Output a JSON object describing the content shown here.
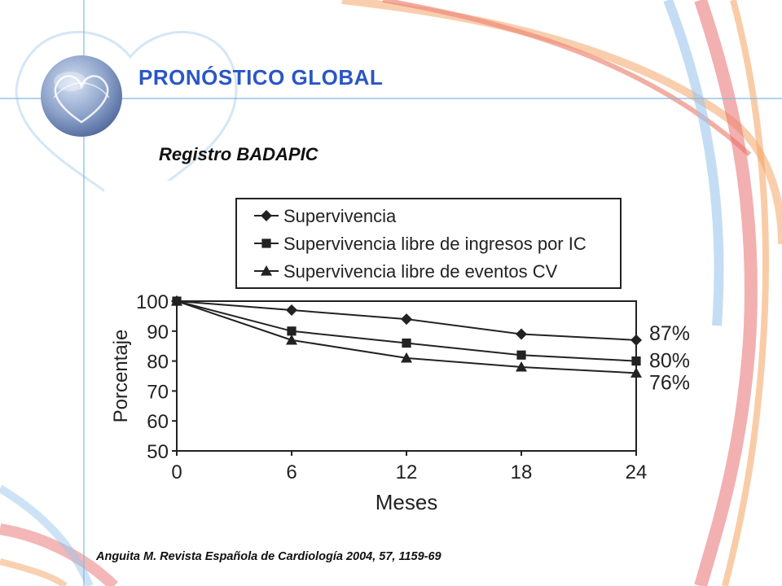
{
  "slide": {
    "title": "PRONÓSTICO GLOBAL",
    "subtitle": "Registro BADAPIC",
    "citation": "Anguita M. Revista Española de Cardiología 2004, 57, 1159-69",
    "colors": {
      "title": "#2a56c6",
      "guide_line": "#7fb8e6",
      "swirl_orange": "#f4a261",
      "swirl_red": "#e76f6f",
      "swirl_blue": "#9cc7ec",
      "logo_sphere": "#6f86b4"
    },
    "logo_icon": "heart-globe-icon"
  },
  "chart_data": {
    "type": "line",
    "title": "",
    "xlabel": "Meses",
    "ylabel": "Porcentaje",
    "x": [
      0,
      6,
      12,
      18,
      24
    ],
    "xlim": [
      0,
      24
    ],
    "ylim": [
      50,
      100
    ],
    "xticks": [
      "0",
      "6",
      "12",
      "18",
      "24"
    ],
    "yticks": [
      "50",
      "60",
      "70",
      "80",
      "90",
      "100"
    ],
    "grid": false,
    "legend_position": "top",
    "series": [
      {
        "name": "Supervivencia",
        "marker": "diamond",
        "values": [
          100,
          97,
          94,
          89,
          87
        ],
        "end_label": "87%"
      },
      {
        "name": "Supervivencia libre de ingresos por IC",
        "marker": "square",
        "values": [
          100,
          90,
          86,
          82,
          80
        ],
        "end_label": "80%"
      },
      {
        "name": "Supervivencia libre de eventos CV",
        "marker": "triangle",
        "values": [
          100,
          87,
          81,
          78,
          76
        ],
        "end_label": "76%"
      }
    ]
  }
}
